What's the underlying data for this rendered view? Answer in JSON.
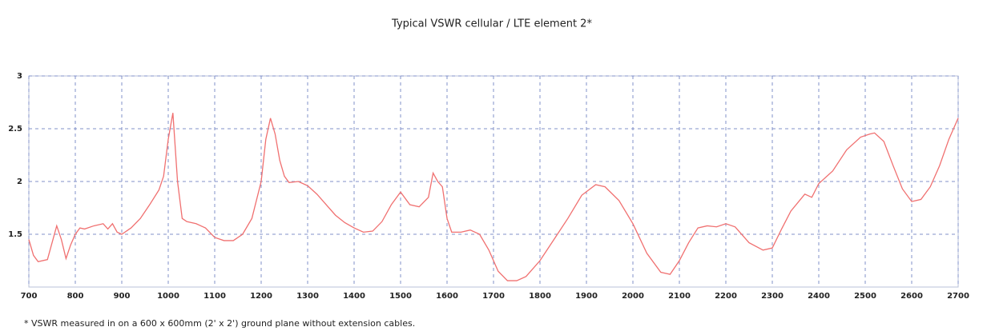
{
  "chart_data": {
    "type": "line",
    "title": "Typical VSWR cellular / LTE element 2*",
    "footnote": "* VSWR measured in on a 600 x 600mm (2' x 2') ground plane without extension cables.",
    "x": [
      700,
      710,
      720,
      740,
      760,
      770,
      780,
      790,
      800,
      810,
      820,
      840,
      860,
      870,
      880,
      890,
      900,
      920,
      940,
      960,
      980,
      990,
      1000,
      1010,
      1020,
      1030,
      1040,
      1060,
      1080,
      1100,
      1120,
      1140,
      1160,
      1180,
      1200,
      1210,
      1220,
      1230,
      1240,
      1250,
      1260,
      1280,
      1300,
      1320,
      1340,
      1360,
      1380,
      1400,
      1420,
      1440,
      1460,
      1480,
      1500,
      1520,
      1540,
      1560,
      1570,
      1580,
      1590,
      1600,
      1610,
      1630,
      1650,
      1670,
      1690,
      1710,
      1730,
      1750,
      1770,
      1800,
      1830,
      1860,
      1890,
      1920,
      1940,
      1970,
      2000,
      2030,
      2060,
      2080,
      2100,
      2120,
      2140,
      2160,
      2180,
      2200,
      2220,
      2250,
      2280,
      2300,
      2320,
      2340,
      2370,
      2385,
      2400,
      2430,
      2460,
      2490,
      2510,
      2520,
      2540,
      2560,
      2580,
      2600,
      2620,
      2640,
      2660,
      2680,
      2700
    ],
    "series": [
      {
        "name": "VSWR",
        "color": "#f07070",
        "values": [
          1.45,
          1.3,
          1.24,
          1.26,
          1.58,
          1.45,
          1.27,
          1.4,
          1.5,
          1.56,
          1.55,
          1.58,
          1.6,
          1.55,
          1.6,
          1.52,
          1.5,
          1.56,
          1.65,
          1.78,
          1.92,
          2.05,
          2.4,
          2.65,
          2.0,
          1.65,
          1.62,
          1.6,
          1.56,
          1.47,
          1.44,
          1.44,
          1.5,
          1.65,
          2.0,
          2.4,
          2.6,
          2.45,
          2.2,
          2.05,
          1.99,
          2.0,
          1.96,
          1.88,
          1.78,
          1.68,
          1.61,
          1.56,
          1.52,
          1.53,
          1.62,
          1.78,
          1.9,
          1.78,
          1.76,
          1.85,
          2.08,
          2.0,
          1.95,
          1.65,
          1.52,
          1.52,
          1.54,
          1.5,
          1.35,
          1.15,
          1.06,
          1.06,
          1.1,
          1.25,
          1.45,
          1.65,
          1.87,
          1.97,
          1.95,
          1.82,
          1.6,
          1.32,
          1.14,
          1.12,
          1.25,
          1.42,
          1.56,
          1.58,
          1.57,
          1.6,
          1.57,
          1.42,
          1.35,
          1.37,
          1.55,
          1.72,
          1.88,
          1.85,
          1.98,
          2.1,
          2.3,
          2.42,
          2.45,
          2.46,
          2.38,
          2.15,
          1.93,
          1.81,
          1.83,
          1.95,
          2.15,
          2.4,
          2.6
        ]
      }
    ],
    "xlim": [
      700,
      2700
    ],
    "xticks": [
      700,
      800,
      900,
      1000,
      1100,
      1200,
      1300,
      1400,
      1500,
      1600,
      1700,
      1800,
      1900,
      2000,
      2100,
      2200,
      2300,
      2400,
      2500,
      2600,
      2700
    ],
    "ylim": [
      1,
      3
    ],
    "yticks": [
      1.5,
      2,
      2.5,
      3
    ],
    "grid": true
  }
}
